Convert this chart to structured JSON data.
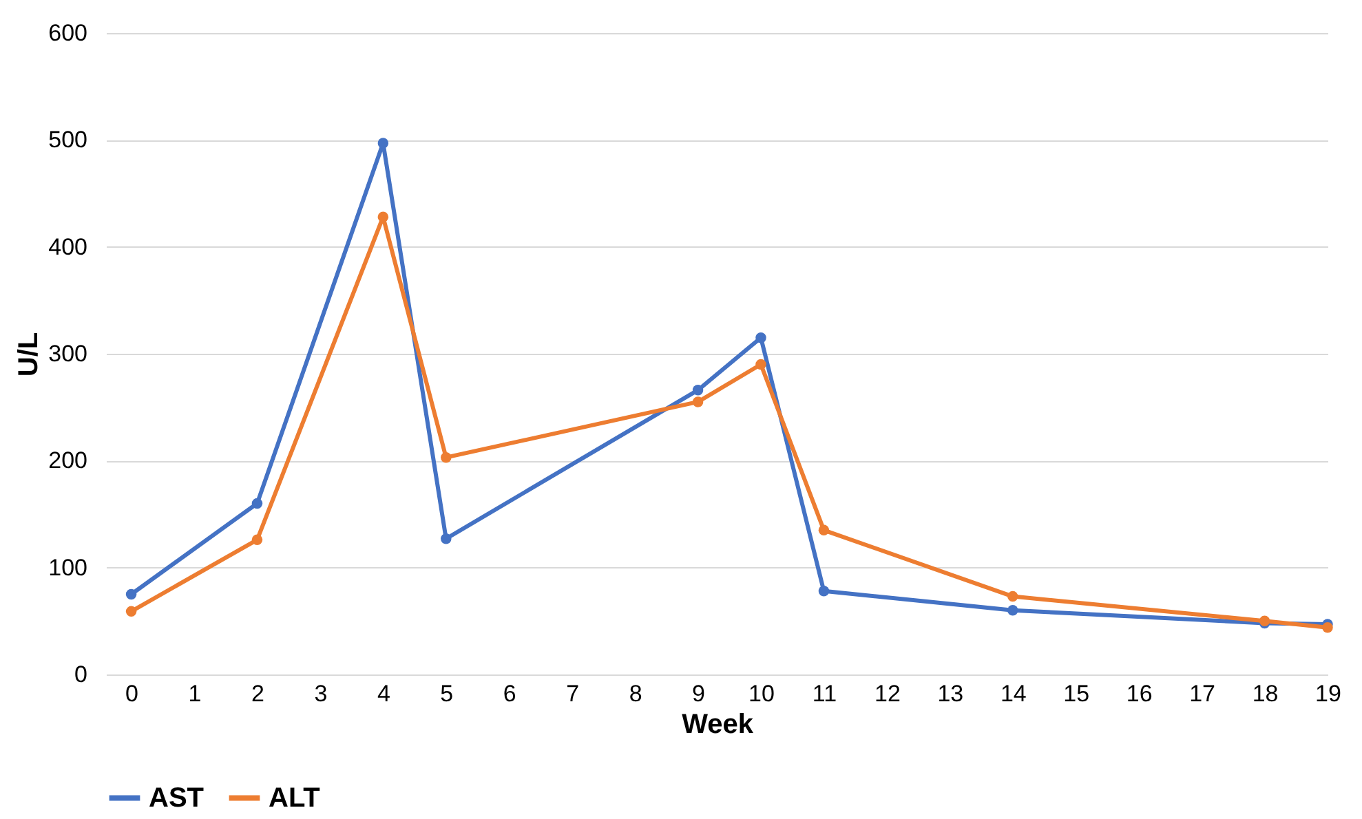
{
  "chart_data": {
    "type": "line",
    "xlabel": "Week",
    "ylabel": "U/L",
    "xlim": [
      -0.4,
      19
    ],
    "xticks": [
      0,
      1,
      2,
      3,
      4,
      5,
      6,
      7,
      8,
      9,
      10,
      11,
      12,
      13,
      14,
      15,
      16,
      17,
      18,
      19
    ],
    "ylim": [
      0,
      600
    ],
    "yticks": [
      0,
      100,
      200,
      300,
      400,
      500,
      600
    ],
    "grid": "y",
    "legend": "bottom",
    "marker": "circle",
    "line_style": "solid",
    "series": [
      {
        "name": "AST",
        "color": "#4472c4",
        "x": [
          0,
          2,
          4,
          5,
          9,
          10,
          11,
          14,
          18,
          19
        ],
        "values": [
          75,
          160,
          497,
          127,
          266,
          315,
          78,
          60,
          48,
          47
        ]
      },
      {
        "name": "ALT",
        "color": "#ed7d31",
        "x": [
          0,
          2,
          4,
          5,
          9,
          10,
          11,
          14,
          18,
          19
        ],
        "values": [
          59,
          126,
          428,
          203,
          255,
          290,
          135,
          73,
          50,
          44
        ]
      }
    ]
  }
}
